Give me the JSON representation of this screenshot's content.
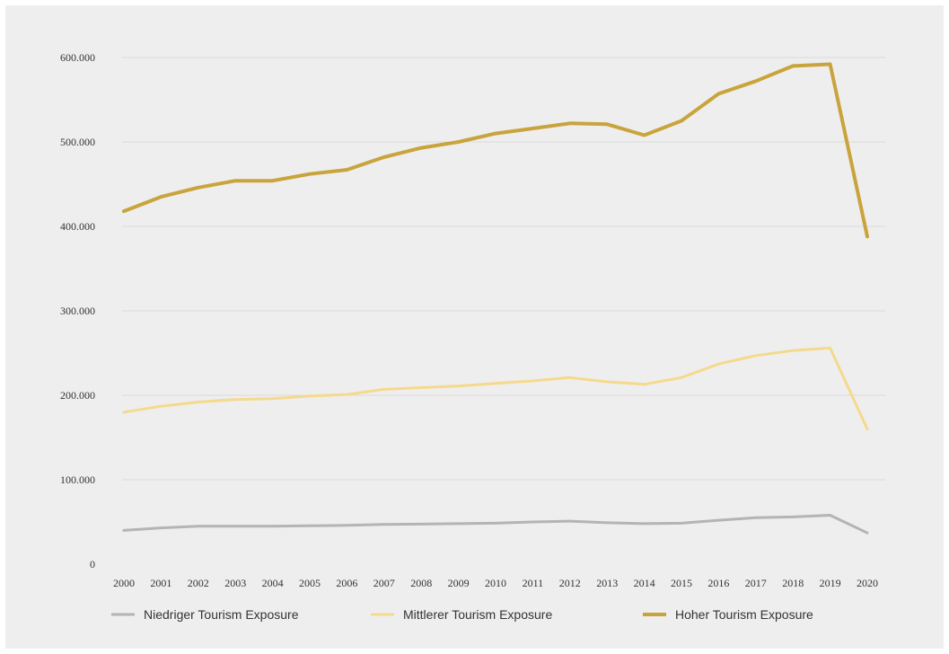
{
  "chart_data": {
    "type": "line",
    "title": "",
    "xlabel": "",
    "ylabel": "",
    "x": [
      "2000",
      "2001",
      "2002",
      "2003",
      "2004",
      "2005",
      "2006",
      "2007",
      "2008",
      "2009",
      "2010",
      "2011",
      "2012",
      "2013",
      "2014",
      "2015",
      "2016",
      "2017",
      "2018",
      "2019",
      "2020"
    ],
    "ylim": [
      0,
      600000
    ],
    "yticks": [
      0,
      100000,
      200000,
      300000,
      400000,
      500000,
      600000
    ],
    "ytick_labels": [
      "0",
      "100.000",
      "200.000",
      "300.000",
      "400.000",
      "500.000",
      "600.000"
    ],
    "grid": true,
    "legend_position": "bottom",
    "series": [
      {
        "name": "Niedriger Tourism Exposure",
        "color": "#b4b4b4",
        "values": [
          40000,
          43000,
          45000,
          45000,
          45000,
          45500,
          46000,
          47000,
          47500,
          48000,
          48500,
          50000,
          51000,
          49000,
          48000,
          48500,
          52000,
          55000,
          56000,
          58000,
          37000
        ]
      },
      {
        "name": "Mittlerer Tourism Exposure",
        "color": "#f5d98c",
        "values": [
          180000,
          187000,
          192000,
          195000,
          196000,
          199000,
          201000,
          207000,
          209000,
          211000,
          214000,
          217000,
          221000,
          216000,
          213000,
          221000,
          237000,
          247000,
          253000,
          256000,
          160000
        ]
      },
      {
        "name": "Hoher Tourism Exposure",
        "color": "#c9a43c",
        "values": [
          418000,
          435000,
          446000,
          454000,
          454000,
          462000,
          467000,
          482000,
          493000,
          500000,
          510000,
          516000,
          522000,
          521000,
          508000,
          525000,
          557000,
          572000,
          590000,
          592000,
          388000
        ]
      }
    ]
  }
}
